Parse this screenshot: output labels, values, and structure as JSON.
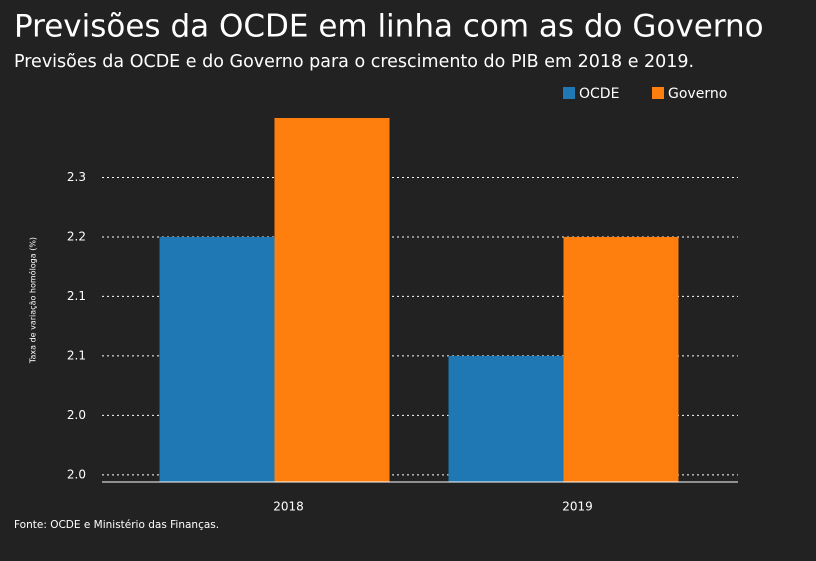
{
  "chart_data": {
    "type": "bar",
    "title": "Previsões da OCDE em linha com as do Governo",
    "subtitle": "Previsões da OCDE e do Governo para o crescimento do PIB em 2018 e 2019.",
    "y_label": "Taxa de variação homóloga (%)",
    "source": "Fonte: OCDE e Ministério das Finanças.",
    "categories": [
      "2018",
      "2019"
    ],
    "series": [
      {
        "name": "OCDE",
        "color": "#1f77b4",
        "values": [
          2.2,
          2.1
        ]
      },
      {
        "name": "Governo",
        "color": "#ff7f0e",
        "values": [
          2.3,
          2.2
        ]
      }
    ],
    "ylim": [
      1.994,
      2.3
    ],
    "yticks": [
      {
        "value": 2.0,
        "label": "2.0"
      },
      {
        "value": 2.05,
        "label": "2.0"
      },
      2.1,
      {
        "value": 2.15,
        "label": "2.1"
      },
      2.2,
      {
        "value": 2.25,
        "label": "2.3"
      }
    ],
    "grid": true,
    "legend": "top-right"
  }
}
